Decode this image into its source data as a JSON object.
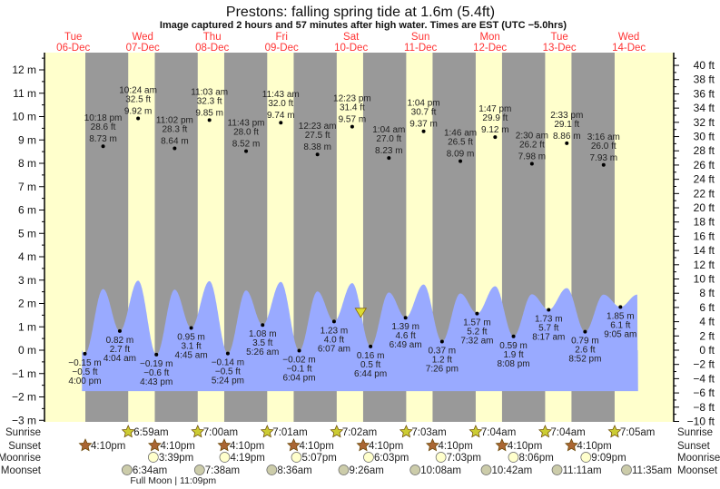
{
  "chart_data": {
    "type": "area",
    "title": "Prestons: falling  spring tide at 1.6m (5.4ft)",
    "subtitle": "Image captured 2 hours and 57 minutes after high water. Times are EST (UTC −5.0hrs)",
    "current_level_m": 1.6,
    "left_axis": {
      "unit": "m",
      "range": [
        -3,
        12.5
      ],
      "ticks": [
        -3,
        -2,
        -1,
        0,
        1,
        2,
        3,
        4,
        5,
        6,
        7,
        8,
        9,
        10,
        11,
        12
      ]
    },
    "right_axis": {
      "unit": "ft",
      "range": [
        -10,
        41
      ],
      "ticks": [
        -10,
        -8,
        -6,
        -4,
        -2,
        0,
        2,
        4,
        6,
        8,
        10,
        12,
        14,
        16,
        18,
        20,
        22,
        24,
        26,
        28,
        30,
        32,
        34,
        36,
        38,
        40
      ]
    },
    "days": [
      {
        "dow": "Tue",
        "date": "06-Dec"
      },
      {
        "dow": "Wed",
        "date": "07-Dec"
      },
      {
        "dow": "Thu",
        "date": "08-Dec"
      },
      {
        "dow": "Fri",
        "date": "09-Dec"
      },
      {
        "dow": "Sat",
        "date": "10-Dec"
      },
      {
        "dow": "Sun",
        "date": "11-Dec"
      },
      {
        "dow": "Mon",
        "date": "12-Dec"
      },
      {
        "dow": "Tue",
        "date": "13-Dec"
      },
      {
        "dow": "Wed",
        "date": "14-Dec"
      }
    ],
    "high_tides": [
      {
        "date": "06-Dec",
        "time": "10:18 pm",
        "ft": "28.6 ft",
        "m": "8.73 m",
        "value": 8.73
      },
      {
        "date": "07-Dec",
        "time": "10:24 am",
        "ft": "32.5 ft",
        "m": "9.92 m",
        "value": 9.92
      },
      {
        "date": "07-Dec",
        "time": "11:02 pm",
        "ft": "28.3 ft",
        "m": "8.64 m",
        "value": 8.64
      },
      {
        "date": "08-Dec",
        "time": "11:03 am",
        "ft": "32.3 ft",
        "m": "9.85 m",
        "value": 9.85
      },
      {
        "date": "08-Dec",
        "time": "11:43 pm",
        "ft": "28.0 ft",
        "m": "8.52 m",
        "value": 8.52
      },
      {
        "date": "09-Dec",
        "time": "11:43 am",
        "ft": "32.0 ft",
        "m": "9.74 m",
        "value": 9.74
      },
      {
        "date": "10-Dec",
        "time": "12:23 am",
        "ft": "27.5 ft",
        "m": "8.38 m",
        "value": 8.38
      },
      {
        "date": "10-Dec",
        "time": "12:23 pm",
        "ft": "31.4 ft",
        "m": "9.57 m",
        "value": 9.57
      },
      {
        "date": "11-Dec",
        "time": "1:04 am",
        "ft": "27.0 ft",
        "m": "8.23 m",
        "value": 8.23
      },
      {
        "date": "11-Dec",
        "time": "1:04 pm",
        "ft": "30.7 ft",
        "m": "9.37 m",
        "value": 9.37
      },
      {
        "date": "12-Dec",
        "time": "1:46 am",
        "ft": "26.5 ft",
        "m": "8.09 m",
        "value": 8.09
      },
      {
        "date": "12-Dec",
        "time": "1:47 pm",
        "ft": "29.9 ft",
        "m": "9.12 m",
        "value": 9.12
      },
      {
        "date": "13-Dec",
        "time": "2:30 am",
        "ft": "26.2 ft",
        "m": "7.98 m",
        "value": 7.98
      },
      {
        "date": "13-Dec",
        "time": "2:33 pm",
        "ft": "29.1 ft",
        "m": "8.86 m",
        "value": 8.86
      },
      {
        "date": "14-Dec",
        "time": "3:16 am",
        "ft": "26.0 ft",
        "m": "7.93 m",
        "value": 7.93
      }
    ],
    "low_tides": [
      {
        "date": "06-Dec",
        "time": "4:00 pm",
        "ft": "−0.5 ft",
        "m": "−0.15 m",
        "value": -0.15
      },
      {
        "date": "07-Dec",
        "time": "4:04 am",
        "ft": "2.7 ft",
        "m": "0.82 m",
        "value": 0.82
      },
      {
        "date": "07-Dec",
        "time": "4:43 pm",
        "ft": "−0.6 ft",
        "m": "−0.19 m",
        "value": -0.19
      },
      {
        "date": "08-Dec",
        "time": "4:45 am",
        "ft": "3.1 ft",
        "m": "0.95 m",
        "value": 0.95
      },
      {
        "date": "08-Dec",
        "time": "5:24 pm",
        "ft": "−0.5 ft",
        "m": "−0.14 m",
        "value": -0.14
      },
      {
        "date": "09-Dec",
        "time": "5:26 am",
        "ft": "3.5 ft",
        "m": "1.08 m",
        "value": 1.08
      },
      {
        "date": "09-Dec",
        "time": "6:04 pm",
        "ft": "−0.1 ft",
        "m": "−0.02 m",
        "value": -0.02
      },
      {
        "date": "10-Dec",
        "time": "6:07 am",
        "ft": "4.0 ft",
        "m": "1.23 m",
        "value": 1.23
      },
      {
        "date": "10-Dec",
        "time": "6:44 pm",
        "ft": "0.5 ft",
        "m": "0.16 m",
        "value": 0.16
      },
      {
        "date": "11-Dec",
        "time": "6:49 am",
        "ft": "4.6 ft",
        "m": "1.39 m",
        "value": 1.39
      },
      {
        "date": "11-Dec",
        "time": "7:26 pm",
        "ft": "1.2 ft",
        "m": "0.37 m",
        "value": 0.37
      },
      {
        "date": "12-Dec",
        "time": "7:32 am",
        "ft": "5.2 ft",
        "m": "1.57 m",
        "value": 1.57
      },
      {
        "date": "12-Dec",
        "time": "8:08 pm",
        "ft": "1.9 ft",
        "m": "0.59 m",
        "value": 0.59
      },
      {
        "date": "13-Dec",
        "time": "8:17 am",
        "ft": "5.7 ft",
        "m": "1.73 m",
        "value": 1.73
      },
      {
        "date": "13-Dec",
        "time": "8:52 pm",
        "ft": "2.6 ft",
        "m": "0.79 m",
        "value": 0.79
      },
      {
        "date": "14-Dec",
        "time": "9:05 am",
        "ft": "6.1 ft",
        "m": "1.85 m",
        "value": 1.85
      }
    ],
    "rows": {
      "sunrise": {
        "label": "Sunrise",
        "items": [
          {
            "date": "07-Dec",
            "time": "6:59am"
          },
          {
            "date": "08-Dec",
            "time": "7:00am"
          },
          {
            "date": "09-Dec",
            "time": "7:01am"
          },
          {
            "date": "10-Dec",
            "time": "7:02am"
          },
          {
            "date": "11-Dec",
            "time": "7:03am"
          },
          {
            "date": "12-Dec",
            "time": "7:04am"
          },
          {
            "date": "13-Dec",
            "time": "7:04am"
          },
          {
            "date": "14-Dec",
            "time": "7:05am"
          }
        ]
      },
      "sunset": {
        "label": "Sunset",
        "items": [
          {
            "date": "06-Dec",
            "time": "4:10pm"
          },
          {
            "date": "07-Dec",
            "time": "4:10pm"
          },
          {
            "date": "08-Dec",
            "time": "4:10pm"
          },
          {
            "date": "09-Dec",
            "time": "4:10pm"
          },
          {
            "date": "10-Dec",
            "time": "4:10pm"
          },
          {
            "date": "11-Dec",
            "time": "4:10pm"
          },
          {
            "date": "12-Dec",
            "time": "4:10pm"
          },
          {
            "date": "13-Dec",
            "time": "4:10pm"
          }
        ]
      },
      "moonrise": {
        "label": "Moonrise",
        "items": [
          {
            "date": "07-Dec",
            "time": "3:39pm"
          },
          {
            "date": "08-Dec",
            "time": "4:19pm"
          },
          {
            "date": "09-Dec",
            "time": "5:07pm"
          },
          {
            "date": "10-Dec",
            "time": "6:03pm"
          },
          {
            "date": "11-Dec",
            "time": "7:03pm"
          },
          {
            "date": "12-Dec",
            "time": "8:06pm"
          },
          {
            "date": "13-Dec",
            "time": "9:09pm"
          }
        ]
      },
      "moonset": {
        "label": "Moonset",
        "items": [
          {
            "date": "07-Dec",
            "time": "6:34am"
          },
          {
            "date": "08-Dec",
            "time": "7:38am"
          },
          {
            "date": "09-Dec",
            "time": "8:36am"
          },
          {
            "date": "10-Dec",
            "time": "9:26am"
          },
          {
            "date": "11-Dec",
            "time": "10:08am"
          },
          {
            "date": "12-Dec",
            "time": "10:42am"
          },
          {
            "date": "13-Dec",
            "time": "11:11am"
          },
          {
            "date": "14-Dec",
            "time": "11:35am"
          }
        ]
      }
    },
    "moon_phase": {
      "date": "07-Dec",
      "time": "11:09pm",
      "text": "Full Moon | 11:09pm"
    },
    "colors": {
      "day": "#ffffcc",
      "night": "#999999",
      "tide": "#99aaff",
      "day_label": "#ff3333",
      "sunrise": "#cccc33",
      "sunset": "#aa6633",
      "moonrise": "#ffffcc",
      "moonset": "#ccccaa",
      "marker": "#dddd33"
    }
  }
}
